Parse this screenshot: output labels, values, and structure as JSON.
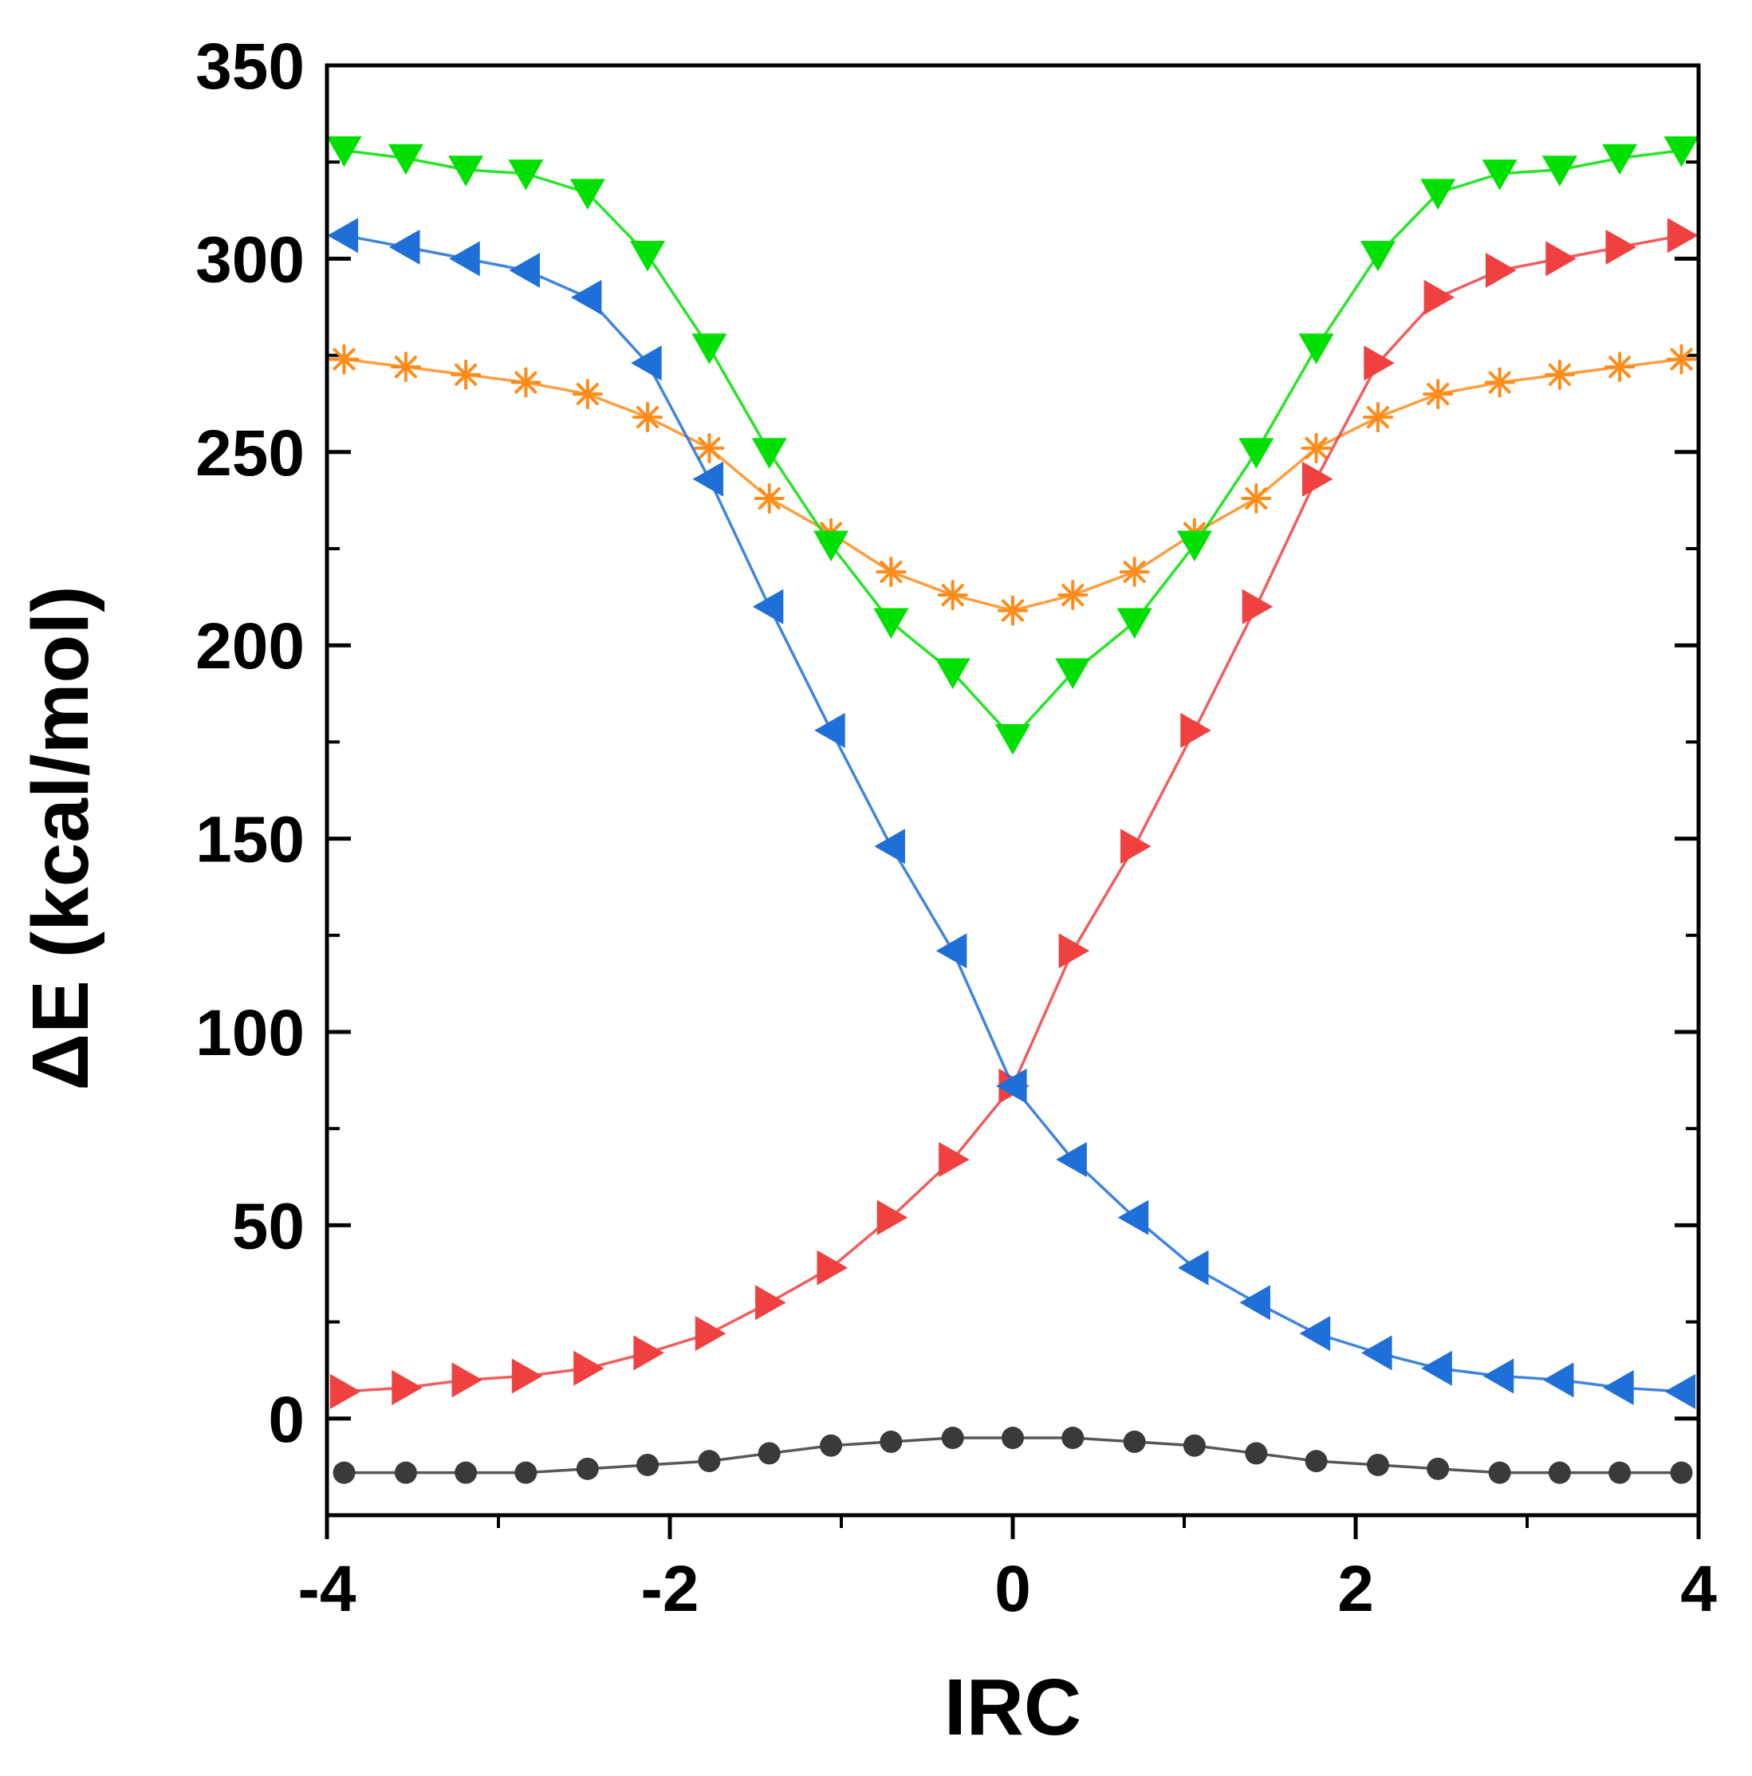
{
  "chart_data": {
    "type": "line",
    "title": "",
    "xlabel": "IRC",
    "ylabel": "ΔE (kcal/mol)",
    "xlim": [
      -4,
      4
    ],
    "ylim": [
      -25,
      350
    ],
    "x_ticks": [
      -4,
      -2,
      0,
      2,
      4
    ],
    "x_tick_labels": [
      "-4",
      "-2",
      "0",
      "2",
      "4"
    ],
    "y_ticks": [
      0,
      50,
      100,
      150,
      200,
      250,
      300,
      350
    ],
    "y_tick_labels": [
      "0",
      "50",
      "100",
      "150",
      "200",
      "250",
      "300",
      "350"
    ],
    "grid": false,
    "legend": "none",
    "x": [
      -3.9,
      -3.54,
      -3.19,
      -2.84,
      -2.48,
      -2.13,
      -1.77,
      -1.42,
      -1.06,
      -0.71,
      -0.35,
      0,
      0.35,
      0.71,
      1.06,
      1.42,
      1.77,
      2.13,
      2.48,
      2.84,
      3.19,
      3.54,
      3.9
    ],
    "series": [
      {
        "name": "green",
        "color": "#00e000",
        "marker": "triangle-down",
        "values": [
          328,
          326,
          323,
          322,
          317,
          301,
          277,
          250,
          226,
          206,
          193,
          176,
          193,
          206,
          226,
          250,
          277,
          301,
          317,
          322,
          323,
          326,
          328
        ]
      },
      {
        "name": "blue",
        "color": "#1f6fd8",
        "marker": "triangle-left",
        "values": [
          306,
          303,
          300,
          297,
          290,
          273,
          243,
          210,
          178,
          148,
          121,
          86,
          67,
          52,
          39,
          30,
          22,
          17,
          13,
          11,
          10,
          8,
          7
        ]
      },
      {
        "name": "red",
        "color": "#f04040",
        "marker": "triangle-right",
        "values": [
          7,
          8,
          10,
          11,
          13,
          17,
          22,
          30,
          39,
          52,
          67,
          86,
          121,
          148,
          178,
          210,
          243,
          273,
          290,
          297,
          300,
          303,
          306
        ]
      },
      {
        "name": "orange",
        "color": "#ff8c1a",
        "marker": "asterisk",
        "values": [
          274,
          272,
          270,
          268,
          265,
          259,
          251,
          238,
          229,
          219,
          213,
          209,
          213,
          219,
          229,
          238,
          251,
          259,
          265,
          268,
          270,
          272,
          274
        ]
      },
      {
        "name": "gray",
        "color": "#3a3a3a",
        "marker": "circle",
        "values": [
          -14,
          -14,
          -14,
          -14,
          -13,
          -12,
          -11,
          -9,
          -7,
          -6,
          -5,
          -5,
          -5,
          -6,
          -7,
          -9,
          -11,
          -12,
          -13,
          -14,
          -14,
          -14,
          -14
        ]
      }
    ]
  }
}
